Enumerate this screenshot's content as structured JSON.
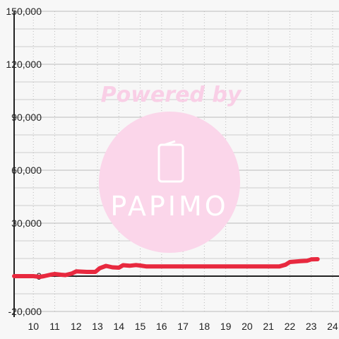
{
  "chart_data": {
    "type": "line",
    "x_ticks": [
      10,
      11,
      12,
      13,
      14,
      15,
      16,
      17,
      18,
      19,
      20,
      21,
      22,
      23,
      24
    ],
    "y_ticks": [
      -20000,
      0,
      30000,
      60000,
      90000,
      120000,
      150000
    ],
    "y_tick_labels": [
      "-20,000",
      "0",
      "30,000",
      "60,000",
      "90,000",
      "120,000",
      "150,000"
    ],
    "xlim": [
      9.1,
      24.3
    ],
    "ylim": [
      -20000,
      150000
    ],
    "grid": true,
    "series": [
      {
        "color": "#e8293f",
        "x": [
          9.1,
          9.5,
          10.0,
          10.3,
          10.5,
          10.8,
          11.0,
          11.3,
          11.5,
          11.8,
          12.0,
          12.5,
          12.9,
          13.1,
          13.4,
          13.7,
          14.0,
          14.2,
          14.5,
          14.8,
          15.0,
          15.3,
          16.0,
          17.0,
          18.0,
          19.0,
          20.0,
          21.0,
          21.5,
          21.8,
          22.0,
          22.5,
          22.8,
          23.0,
          23.3
        ],
        "y": [
          0,
          0,
          0,
          -400,
          0,
          800,
          1200,
          800,
          600,
          1500,
          2700,
          2400,
          2400,
          4500,
          5800,
          5000,
          4800,
          6200,
          5900,
          6300,
          6000,
          5500,
          5500,
          5500,
          5500,
          5500,
          5500,
          5500,
          5500,
          6500,
          8000,
          8500,
          8700,
          9500,
          9600
        ]
      }
    ]
  },
  "watermark": {
    "powered_text": "Powered by",
    "brand": "PAPIMO"
  }
}
